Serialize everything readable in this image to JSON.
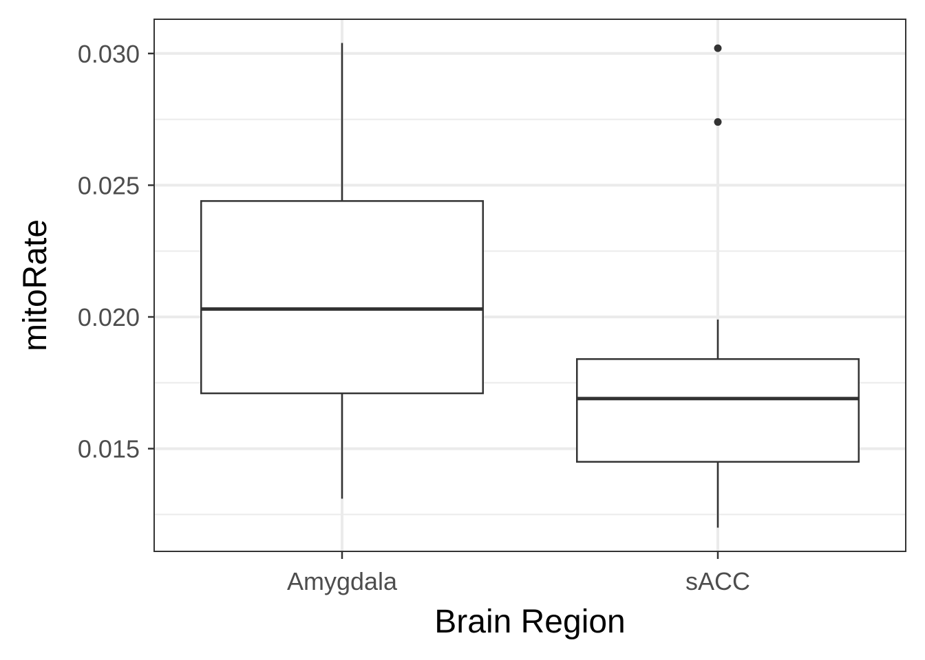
{
  "chart_data": {
    "type": "box",
    "xlabel": "Brain Region",
    "ylabel": "mitoRate",
    "ylim": [
      0.0111,
      0.0313
    ],
    "y_ticks": [
      0.015,
      0.02,
      0.025,
      0.03
    ],
    "y_tick_labels": [
      "0.015",
      "0.020",
      "0.025",
      "0.030"
    ],
    "y_minor_ticks": [
      0.0125,
      0.0175,
      0.0225,
      0.0275
    ],
    "categories": [
      "Amygdala",
      "sACC"
    ],
    "boxes": [
      {
        "category": "Amygdala",
        "whisker_low": 0.0131,
        "q1": 0.0171,
        "median": 0.0203,
        "q3": 0.0244,
        "whisker_high": 0.0304,
        "outliers": []
      },
      {
        "category": "sACC",
        "whisker_low": 0.012,
        "q1": 0.0145,
        "median": 0.0169,
        "q3": 0.0184,
        "whisker_high": 0.0199,
        "outliers": [
          0.0302,
          0.0274
        ]
      }
    ],
    "grid": true,
    "theme": "bw",
    "colors": {
      "box_line": "#333333",
      "grid": "#ebebeb",
      "panel_border": "#333333",
      "tick_label": "#4d4d4d"
    }
  }
}
